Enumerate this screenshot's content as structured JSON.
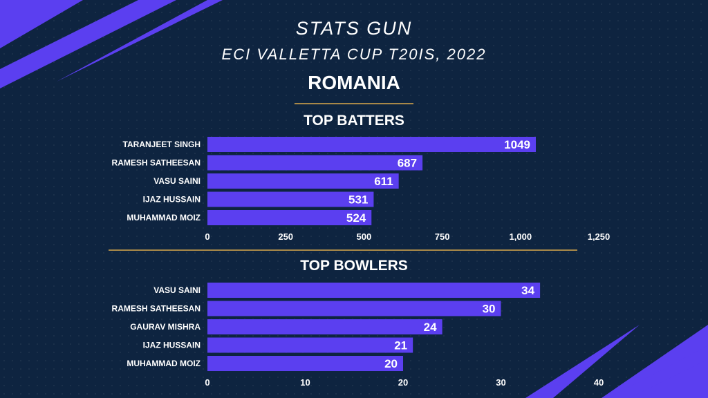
{
  "header": {
    "brand": "STATS GUN",
    "tournament": "ECI VALLETTA CUP T20IS, 2022",
    "team": "ROMANIA"
  },
  "colors": {
    "background": "#0e2440",
    "bar": "#5b3ff0",
    "accent_rule": "#a88848"
  },
  "chart_data": [
    {
      "type": "bar",
      "orientation": "horizontal",
      "title": "TOP BATTERS",
      "categories": [
        "TARANJEET SINGH",
        "RAMESH SATHEESAN",
        "VASU SAINI",
        "IJAZ HUSSAIN",
        "MUHAMMAD MOIZ"
      ],
      "values": [
        1049,
        687,
        611,
        531,
        524
      ],
      "value_labels": [
        "1049",
        "687",
        "611",
        "531",
        "524"
      ],
      "xlim": [
        0,
        1250
      ],
      "ticks": [
        0,
        250,
        500,
        750,
        1000,
        1250
      ],
      "tick_labels": [
        "0",
        "250",
        "500",
        "750",
        "1,000",
        "1,250"
      ],
      "grid": false
    },
    {
      "type": "bar",
      "orientation": "horizontal",
      "title": "TOP BOWLERS",
      "categories": [
        "VASU SAINI",
        "RAMESH SATHEESAN",
        "GAURAV MISHRA",
        "IJAZ HUSSAIN",
        "MUHAMMAD MOIZ"
      ],
      "values": [
        34,
        30,
        24,
        21,
        20
      ],
      "value_labels": [
        "34",
        "30",
        "24",
        "21",
        "20"
      ],
      "xlim": [
        0,
        40
      ],
      "ticks": [
        0,
        10,
        20,
        30,
        40
      ],
      "tick_labels": [
        "0",
        "10",
        "20",
        "30",
        "40"
      ],
      "grid": false
    }
  ]
}
